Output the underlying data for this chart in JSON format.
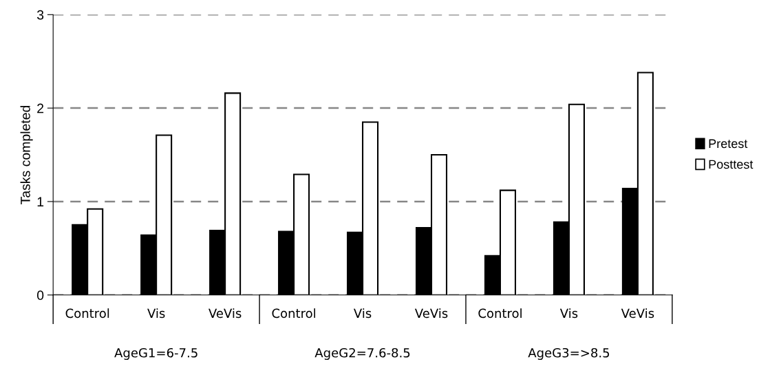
{
  "chart_data": {
    "type": "bar",
    "ylabel": "Tasks completed",
    "categories": [
      "Control",
      "Vis",
      "VeVis",
      "Control",
      "Vis",
      "VeVis",
      "Control",
      "Vis",
      "VeVis"
    ],
    "annotations": [
      "AgeG1=6-7.5",
      "AgeG2=7.6-8.5",
      "AgeG3=>8.5"
    ],
    "series": [
      {
        "name": "Pretest",
        "color": "#000000",
        "values": [
          0.75,
          0.64,
          0.69,
          0.68,
          0.67,
          0.72,
          0.42,
          0.78,
          1.14
        ]
      },
      {
        "name": "Posttest",
        "color": "#ffffff",
        "values": [
          0.92,
          1.71,
          2.16,
          1.29,
          1.85,
          1.5,
          1.12,
          2.04,
          2.38
        ]
      }
    ],
    "ylim": [
      0,
      3
    ],
    "yticks": [
      0,
      1,
      2,
      3
    ],
    "grid": "y",
    "line_style": "dashed",
    "legend": "right"
  }
}
